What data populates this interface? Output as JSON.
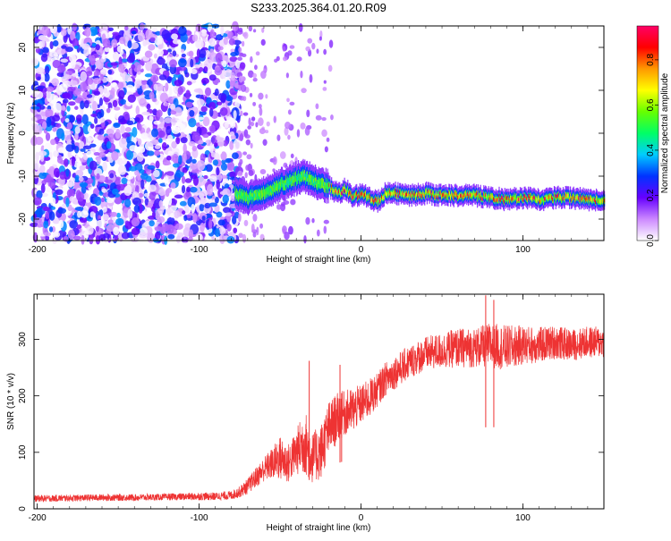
{
  "title": "S233.2025.364.01.20.R09",
  "chart_data": [
    {
      "type": "heatmap",
      "xlabel": "Height of straight line (km)",
      "ylabel": "Frequency (Hz)",
      "xlim": [
        -202,
        150
      ],
      "ylim": [
        -25,
        25
      ],
      "xticks": [
        -200,
        -100,
        0,
        100
      ],
      "yticks": [
        -20,
        -10,
        0,
        10,
        20
      ],
      "colorbar": {
        "label": "Normalized spectral amplitude",
        "range": [
          0,
          0.95
        ],
        "ticks": [
          0.0,
          0.2,
          0.4,
          0.6,
          0.8
        ],
        "tick_labels": [
          "0.0",
          "0.2",
          "0.4",
          "0.6",
          "0.8"
        ],
        "colors": [
          "#ffffff",
          "#cc88ff",
          "#6600ff",
          "#0033ff",
          "#00ccff",
          "#00ff66",
          "#66ff00",
          "#ffff00",
          "#ff9900",
          "#ff0000",
          "#ff0066"
        ]
      },
      "signal_track": {
        "x": [
          -78,
          -70,
          -60,
          -50,
          -40,
          -35,
          -30,
          -20,
          -15,
          -10,
          -5,
          0,
          5,
          10,
          15,
          20,
          30,
          40,
          50,
          60,
          70,
          80,
          90,
          100,
          110,
          120,
          130,
          140,
          150
        ],
        "y": [
          -14,
          -15,
          -14,
          -12,
          -10.5,
          -10,
          -11,
          -12.5,
          -14,
          -13,
          -15,
          -14,
          -15,
          -16,
          -14,
          -14,
          -14.5,
          -14,
          -14.5,
          -14.5,
          -14.5,
          -15,
          -15.5,
          -15,
          -15.5,
          -15,
          -15,
          -15.5,
          -15.5
        ]
      },
      "noise_region_x": [
        -202,
        -75
      ]
    },
    {
      "type": "line",
      "xlabel": "Height of straight line (km)",
      "ylabel": "SNR (10 * v/v)",
      "xlim": [
        -202,
        150
      ],
      "ylim": [
        0,
        380
      ],
      "xticks": [
        -200,
        -100,
        0,
        100
      ],
      "yticks": [
        0,
        100,
        200,
        300
      ],
      "color": "#ee3333",
      "series": [
        {
          "x": [
            -202,
            -180,
            -160,
            -140,
            -120,
            -100,
            -90,
            -80,
            -75,
            -70,
            -65,
            -60,
            -55,
            -50,
            -45,
            -40,
            -35,
            -30,
            -25,
            -20,
            -15,
            -10,
            -5,
            0,
            5,
            10,
            15,
            20,
            25,
            30,
            40,
            50,
            60,
            70,
            80,
            90,
            100,
            110,
            120,
            130,
            140,
            150
          ],
          "values": [
            18,
            19,
            20,
            20,
            21,
            22,
            22,
            24,
            30,
            40,
            55,
            70,
            80,
            90,
            80,
            100,
            120,
            90,
            100,
            140,
            160,
            170,
            175,
            185,
            195,
            210,
            230,
            240,
            250,
            260,
            275,
            280,
            285,
            285,
            290,
            285,
            290,
            290,
            295,
            290,
            295,
            295
          ],
          "spread": [
            6,
            6,
            6,
            6,
            6,
            7,
            7,
            8,
            10,
            14,
            18,
            22,
            28,
            40,
            35,
            40,
            60,
            45,
            50,
            50,
            45,
            40,
            40,
            35,
            35,
            30,
            30,
            30,
            30,
            30,
            30,
            32,
            35,
            35,
            40,
            40,
            35,
            32,
            30,
            28,
            28,
            28
          ]
        }
      ],
      "spikes": [
        {
          "x": -32,
          "value": 262
        },
        {
          "x": -13,
          "value": 255
        },
        {
          "x": -12,
          "value": 205
        },
        {
          "x": 77,
          "value": 378
        },
        {
          "x": 82,
          "value": 370
        }
      ]
    }
  ]
}
